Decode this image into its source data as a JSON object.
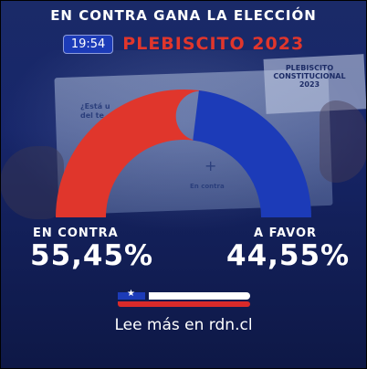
{
  "headline": "EN CONTRA GANA LA ELECCIÓN",
  "time": "19:54",
  "event_title": "PLEBISCITO 2023",
  "background": {
    "ballot_question": "¿Está u\ndel te",
    "ballot_header": "PLEBISCITO\nCONSTITUCIONAL\n2023",
    "ballot_option": "En contra"
  },
  "results": {
    "against": {
      "label": "EN CONTRA",
      "percent_text": "55,45%",
      "value": 55.45,
      "color": "#e0362c"
    },
    "favor": {
      "label": "A FAVOR",
      "percent_text": "44,55%",
      "value": 44.55,
      "color": "#1c3bb8"
    }
  },
  "flag_icon": "chile-flag-icon",
  "footer": {
    "read_more": "Lee más en rdn.cl"
  },
  "colors": {
    "background": "#17266a",
    "accent_red": "#e0362c",
    "accent_blue": "#1c3bb8"
  }
}
